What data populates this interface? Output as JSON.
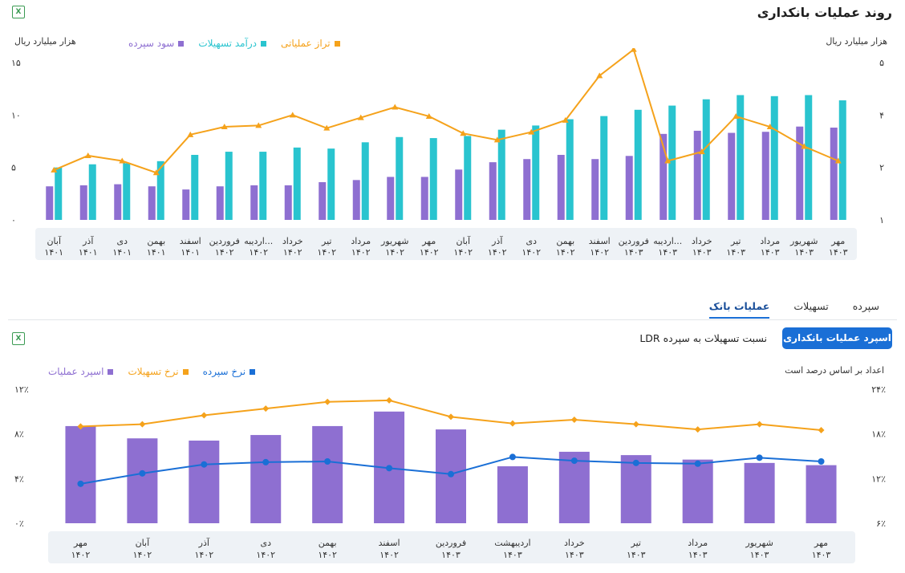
{
  "top": {
    "title": "روند عملیات بانکداری",
    "excel_icon": "excel-icon",
    "unit_right": "هزار میلیارد ریال",
    "unit_left": "هزار میلیارد ریال",
    "legend": [
      {
        "label": "تراز عملیاتی",
        "color": "#f5a21b"
      },
      {
        "label": "درآمد تسهیلات",
        "color": "#29c4cf"
      },
      {
        "label": "سود سپرده",
        "color": "#8e6fd1"
      }
    ]
  },
  "tabs": {
    "items": [
      "سپرده",
      "تسهیلات",
      "عملیات بانک"
    ],
    "active": "عملیات بانک"
  },
  "bottom": {
    "excel_icon": "excel-icon",
    "primary_button": "اسپرد عملیات بانکداری",
    "secondary_button": "نسبت تسهیلات به سپرده LDR",
    "unit_right": "اعداد بر اساس درصد است",
    "legend": [
      {
        "label": "نرخ سپرده",
        "color": "#1a6fd6"
      },
      {
        "label": "نرخ تسهیلات",
        "color": "#f5a21b"
      },
      {
        "label": "اسپرد عملیات",
        "color": "#8e6fd1"
      }
    ]
  },
  "chart_data": [
    {
      "type": "bar",
      "title": "روند عملیات بانکداری",
      "categories": [
        [
          "آبان",
          "۱۴۰۱"
        ],
        [
          "آذر",
          "۱۴۰۱"
        ],
        [
          "دی",
          "۱۴۰۱"
        ],
        [
          "بهمن",
          "۱۴۰۱"
        ],
        [
          "اسفند",
          "۱۴۰۱"
        ],
        [
          "فروردین",
          "۱۴۰۲"
        ],
        [
          "اردیبه...",
          "۱۴۰۲"
        ],
        [
          "خرداد",
          "۱۴۰۲"
        ],
        [
          "تیر",
          "۱۴۰۲"
        ],
        [
          "مرداد",
          "۱۴۰۲"
        ],
        [
          "شهریور",
          "۱۴۰۲"
        ],
        [
          "مهر",
          "۱۴۰۲"
        ],
        [
          "آبان",
          "۱۴۰۲"
        ],
        [
          "آذر",
          "۱۴۰۲"
        ],
        [
          "دی",
          "۱۴۰۲"
        ],
        [
          "بهمن",
          "۱۴۰۲"
        ],
        [
          "اسفند",
          "۱۴۰۲"
        ],
        [
          "فروردین",
          "۱۴۰۳"
        ],
        [
          "اردیبه...",
          "۱۴۰۳"
        ],
        [
          "خرداد",
          "۱۴۰۳"
        ],
        [
          "تیر",
          "۱۴۰۳"
        ],
        [
          "مرداد",
          "۱۴۰۳"
        ],
        [
          "شهریور",
          "۱۴۰۳"
        ],
        [
          "مهر",
          "۱۴۰۳"
        ]
      ],
      "series": [
        {
          "name": "سود سپرده",
          "kind": "bar",
          "axis": "left",
          "color": "#8e6fd1",
          "values": [
            3.2,
            3.3,
            3.4,
            3.2,
            2.9,
            3.2,
            3.3,
            3.3,
            3.6,
            3.8,
            4.1,
            4.1,
            4.8,
            5.5,
            5.8,
            6.2,
            5.8,
            6.1,
            8.2,
            8.5,
            8.3,
            8.4,
            8.9,
            8.8
          ]
        },
        {
          "name": "درآمد تسهیلات",
          "kind": "bar",
          "axis": "left",
          "color": "#29c4cf",
          "values": [
            5.0,
            5.3,
            5.4,
            5.6,
            6.2,
            6.5,
            6.5,
            6.9,
            6.8,
            7.4,
            7.9,
            7.8,
            8.0,
            8.6,
            9.0,
            9.6,
            9.9,
            10.5,
            10.9,
            11.5,
            11.9,
            11.8,
            11.9,
            11.4
          ]
        },
        {
          "name": "تراز عملیاتی",
          "kind": "line",
          "axis": "right",
          "color": "#f5a21b",
          "values": [
            1.95,
            2.45,
            2.25,
            1.9,
            3.25,
            3.55,
            3.6,
            4.0,
            3.5,
            3.9,
            4.15,
            3.95,
            3.3,
            3.05,
            3.35,
            3.8,
            4.75,
            5.25,
            2.25,
            2.6,
            3.95,
            3.55,
            2.8,
            2.25
          ]
        }
      ],
      "y_left": {
        "ticks": [
          0,
          5,
          10,
          15
        ],
        "ylim": [
          0,
          15
        ],
        "label": "هزار میلیارد ریال"
      },
      "y_right": {
        "ticks": [
          1,
          2,
          4,
          5
        ],
        "label": "هزار میلیارد ریال"
      },
      "grid": false
    },
    {
      "type": "bar",
      "categories": [
        [
          "مهر",
          "۱۴۰۲"
        ],
        [
          "آبان",
          "۱۴۰۲"
        ],
        [
          "آذر",
          "۱۴۰۲"
        ],
        [
          "دی",
          "۱۴۰۲"
        ],
        [
          "بهمن",
          "۱۴۰۲"
        ],
        [
          "اسفند",
          "۱۴۰۲"
        ],
        [
          "فروردین",
          "۱۴۰۳"
        ],
        [
          "اردیبهشت",
          "۱۴۰۳"
        ],
        [
          "خرداد",
          "۱۴۰۳"
        ],
        [
          "تیر",
          "۱۴۰۳"
        ],
        [
          "مرداد",
          "۱۴۰۳"
        ],
        [
          "شهریور",
          "۱۴۰۳"
        ],
        [
          "مهر",
          "۱۴۰۳"
        ]
      ],
      "series": [
        {
          "name": "اسپرد عملیات",
          "kind": "bar",
          "axis": "left",
          "color": "#8e6fd1",
          "values": [
            8.7,
            7.6,
            7.4,
            7.9,
            8.7,
            10.0,
            8.4,
            5.1,
            6.4,
            6.1,
            5.7,
            5.4,
            5.2
          ]
        },
        {
          "name": "نرخ تسهیلات",
          "kind": "line",
          "axis": "right",
          "color": "#f5a21b",
          "values": [
            19.0,
            19.3,
            20.5,
            21.4,
            22.3,
            22.5,
            20.3,
            19.4,
            19.9,
            19.3,
            18.6,
            19.3,
            18.5
          ]
        },
        {
          "name": "نرخ سپرده",
          "kind": "line",
          "axis": "right",
          "color": "#1a6fd6",
          "values": [
            11.3,
            12.7,
            13.9,
            14.2,
            14.3,
            13.4,
            12.6,
            14.9,
            14.4,
            14.1,
            14.0,
            14.8,
            14.3
          ]
        }
      ],
      "y_left": {
        "ticks": [
          0,
          4,
          8,
          12
        ],
        "tick_labels": [
          "۰٪",
          "۴٪",
          "۸٪",
          "۱۲٪"
        ],
        "ylim": [
          0,
          12
        ]
      },
      "y_right": {
        "ticks": [
          6,
          12,
          18,
          24
        ],
        "tick_labels": [
          "۶٪",
          "۱۲٪",
          "۱۸٪",
          "۲۴٪"
        ],
        "ylim": [
          6,
          24
        ]
      },
      "grid": false
    }
  ]
}
